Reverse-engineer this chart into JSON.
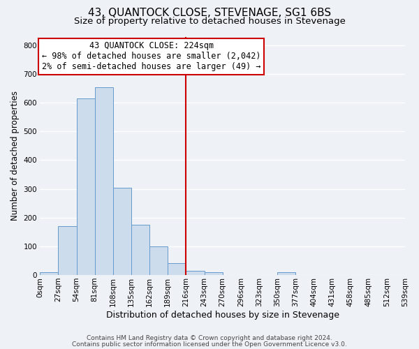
{
  "title": "43, QUANTOCK CLOSE, STEVENAGE, SG1 6BS",
  "subtitle": "Size of property relative to detached houses in Stevenage",
  "xlabel": "Distribution of detached houses by size in Stevenage",
  "ylabel": "Number of detached properties",
  "bin_edges": [
    0,
    27,
    54,
    81,
    108,
    135,
    162,
    189,
    216,
    243,
    270,
    297,
    324,
    351,
    378,
    405,
    432,
    459,
    486,
    513,
    540
  ],
  "bin_labels": [
    "0sqm",
    "27sqm",
    "54sqm",
    "81sqm",
    "108sqm",
    "135sqm",
    "162sqm",
    "189sqm",
    "216sqm",
    "243sqm",
    "270sqm",
    "296sqm",
    "323sqm",
    "350sqm",
    "377sqm",
    "404sqm",
    "431sqm",
    "458sqm",
    "485sqm",
    "512sqm",
    "539sqm"
  ],
  "counts": [
    10,
    170,
    615,
    655,
    305,
    175,
    100,
    42,
    15,
    10,
    0,
    0,
    0,
    10,
    0,
    0,
    0,
    0,
    0,
    0
  ],
  "bar_color": "#ccdcec",
  "bar_edge_color": "#6699cc",
  "vline_x": 216,
  "vline_color": "#cc0000",
  "annotation_title": "43 QUANTOCK CLOSE: 224sqm",
  "annotation_line1": "← 98% of detached houses are smaller (2,042)",
  "annotation_line2": "2% of semi-detached houses are larger (49) →",
  "ylim": [
    0,
    830
  ],
  "yticks": [
    0,
    100,
    200,
    300,
    400,
    500,
    600,
    700,
    800
  ],
  "background_color": "#eef2f7",
  "grid_color": "#ffffff",
  "footer_line1": "Contains HM Land Registry data © Crown copyright and database right 2024.",
  "footer_line2": "Contains public sector information licensed under the Open Government Licence v3.0.",
  "title_fontsize": 11,
  "subtitle_fontsize": 9.5,
  "xlabel_fontsize": 9,
  "ylabel_fontsize": 8.5,
  "tick_fontsize": 7.5,
  "annotation_fontsize": 8.5,
  "footer_fontsize": 6.5
}
